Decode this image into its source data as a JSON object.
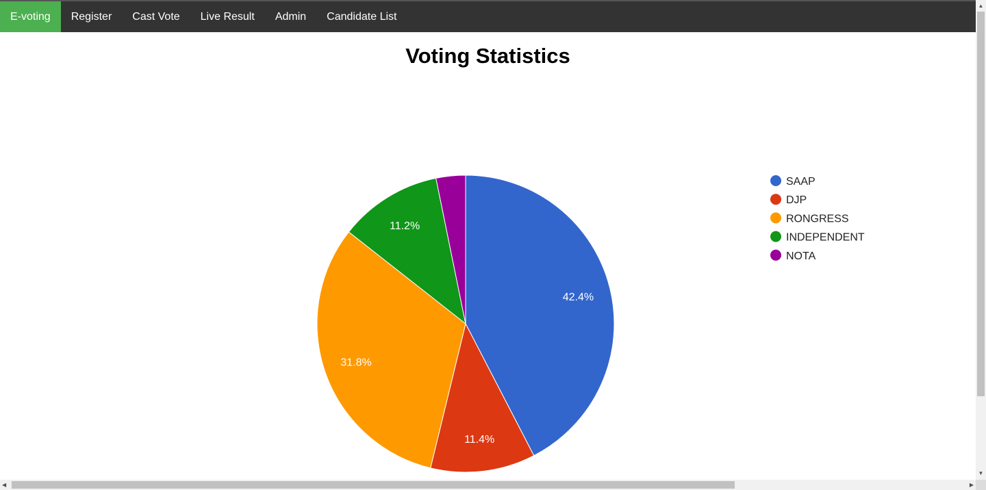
{
  "navbar": {
    "items": [
      {
        "label": "E-voting",
        "active": true
      },
      {
        "label": "Register",
        "active": false
      },
      {
        "label": "Cast Vote",
        "active": false
      },
      {
        "label": "Live Result",
        "active": false
      },
      {
        "label": "Admin",
        "active": false
      },
      {
        "label": "Candidate List",
        "active": false
      }
    ],
    "background": "#333333",
    "active_color": "#4CAF50"
  },
  "page_title": "Voting Statistics",
  "chart_data": {
    "type": "pie",
    "title": "Voting Statistics",
    "legend_position": "right",
    "slices": [
      {
        "name": "SAAP",
        "percent": 42.4,
        "label": "42.4%",
        "color": "#3366CC"
      },
      {
        "name": "DJP",
        "percent": 11.4,
        "label": "11.4%",
        "color": "#DC3912"
      },
      {
        "name": "RONGRESS",
        "percent": 31.8,
        "label": "31.8%",
        "color": "#FF9900"
      },
      {
        "name": "INDEPENDENT",
        "percent": 11.2,
        "label": "11.2%",
        "color": "#109618"
      },
      {
        "name": "NOTA",
        "percent": 3.2,
        "label": "",
        "color": "#990099"
      }
    ]
  },
  "scrollbars": {
    "vertical_position": 0,
    "horizontal_position": 0
  }
}
